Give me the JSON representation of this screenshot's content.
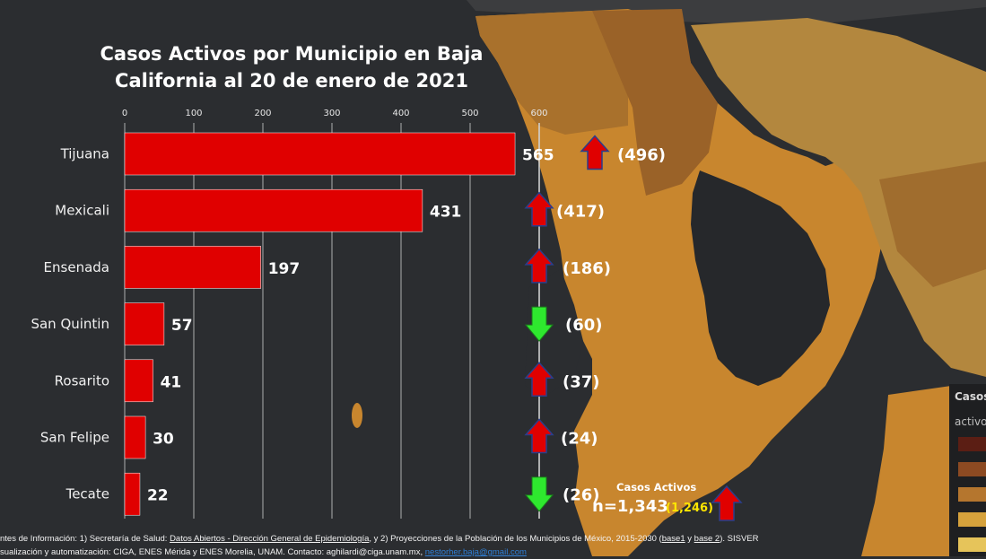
{
  "chart_data": {
    "type": "bar",
    "orientation": "horizontal",
    "title_line1": "Casos Activos por Municipio en Baja",
    "title_line2": "California al 20 de enero de 2021",
    "categories": [
      "Tijuana",
      "Mexicali",
      "Ensenada",
      "San Quintin",
      "Rosarito",
      "San Felipe",
      "Tecate"
    ],
    "values": [
      565,
      431,
      197,
      57,
      41,
      30,
      22
    ],
    "previous_labels": [
      "(496)",
      "(417)",
      "(186)",
      "(60)",
      "(37)",
      "(24)",
      "(26)"
    ],
    "trend": [
      "up",
      "up",
      "up",
      "down",
      "up",
      "up",
      "down"
    ],
    "xlim": [
      0,
      600
    ],
    "xticks": [
      "0",
      "100",
      "200",
      "300",
      "400",
      "500",
      "600"
    ],
    "grid": true,
    "bar_color": "#e00000"
  },
  "totals": {
    "label": "Casos Activos",
    "current": "n=1,343",
    "previous": "(1,246)",
    "trend": "up"
  },
  "legend": {
    "title": "Casos",
    "subtitle": "activo"
  },
  "sources": {
    "line1_a": "ntes de Información: 1) Secretaría de Salud: ",
    "line1_link": "Datos Abiertos - Dirección General de Epidemiología",
    "line1_b": ", y 2) Proyecciones de la Población de los Municipios de México, 2015-2030 (",
    "line1_base1": "base1",
    "line1_y": " y ",
    "line1_base2": "base 2",
    "line1_c": "). SISVER",
    "line2_a": "sualización y automatización: CIGA, ENES Mérida y ENES Morelia, UNAM. Contacto: aghilardi@ciga.unam.mx, ",
    "line2_link": "nestorher.baja@gmail.com"
  },
  "colors": {
    "background": "#2b2d30",
    "map_dark": "#9a6228",
    "map_mid": "#c8862e",
    "map_light": "#b3873e",
    "arrow_up": "#e00000",
    "arrow_down": "#2ee82e",
    "previous_total": "#ffe600"
  }
}
